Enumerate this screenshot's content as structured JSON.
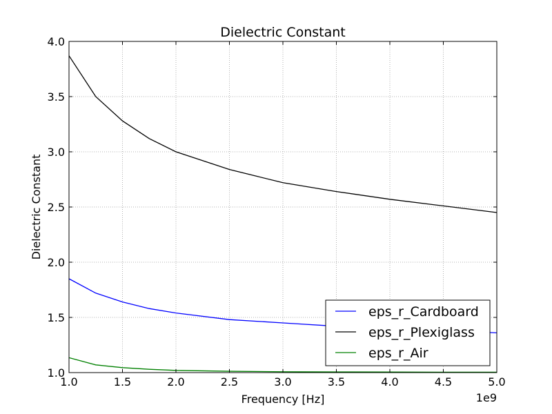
{
  "chart_data": {
    "type": "line",
    "title": "Dielectric Constant",
    "xlabel": "Frequency [Hz]",
    "ylabel": "Dielectric Constant",
    "x_offset_label": "1e9",
    "xlim": [
      1.0,
      5.0
    ],
    "ylim": [
      1.0,
      4.0
    ],
    "x_ticks": [
      "1.0",
      "1.5",
      "2.0",
      "2.5",
      "3.0",
      "3.5",
      "4.0",
      "4.5",
      "5.0"
    ],
    "y_ticks": [
      "1.0",
      "1.5",
      "2.0",
      "2.5",
      "3.0",
      "3.5",
      "4.0"
    ],
    "grid": true,
    "legend_position": "bottom-right",
    "x": [
      1.0,
      1.25,
      1.5,
      1.75,
      2.0,
      2.5,
      3.0,
      3.5,
      4.0,
      4.5,
      5.0
    ],
    "series": [
      {
        "name": "eps_r_Cardboard",
        "color": "#0000ff",
        "values": [
          1.85,
          1.72,
          1.64,
          1.58,
          1.54,
          1.48,
          1.45,
          1.42,
          1.4,
          1.38,
          1.36
        ]
      },
      {
        "name": "eps_r_Plexiglass",
        "color": "#000000",
        "values": [
          3.87,
          3.5,
          3.28,
          3.12,
          3.0,
          2.84,
          2.72,
          2.64,
          2.57,
          2.51,
          2.45
        ]
      },
      {
        "name": "eps_r_Air",
        "color": "#008000",
        "values": [
          1.135,
          1.07,
          1.045,
          1.03,
          1.02,
          1.012,
          1.008,
          1.006,
          1.005,
          1.004,
          1.004
        ]
      }
    ]
  }
}
